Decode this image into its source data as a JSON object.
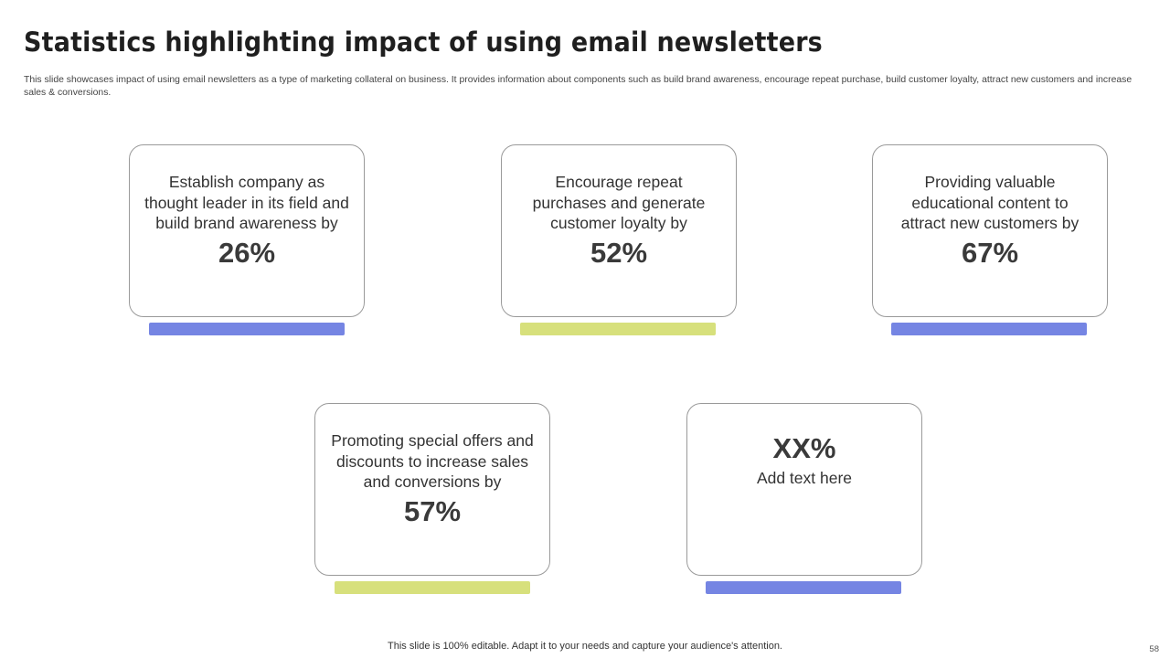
{
  "slide": {
    "title": "Statistics highlighting impact of using email newsletters",
    "subtitle": "This slide showcases impact of using email newsletters as a type of marketing collateral on business. It provides information about components such as build brand awareness, encourage repeat purchase, build customer loyalty, attract new customers and increase sales & conversions.",
    "footer": "This slide is 100% editable. Adapt it to your needs and capture your audience's attention.",
    "page_number": "58"
  },
  "colors": {
    "blue_bar": "#7585e3",
    "green_bar": "#d7e07c",
    "card_border": "#9a9a9a"
  },
  "cards": [
    {
      "text": "Establish company as thought leader in its field and build brand awareness by",
      "value": "26%"
    },
    {
      "text": "Encourage repeat purchases and generate customer loyalty by",
      "value": "52%"
    },
    {
      "text": "Providing valuable educational content to attract new customers by",
      "value": "67%"
    },
    {
      "text": "Promoting special offers and discounts to increase sales and conversions by",
      "value": "57%"
    },
    {
      "value": "XX%",
      "text": "Add text here"
    }
  ]
}
